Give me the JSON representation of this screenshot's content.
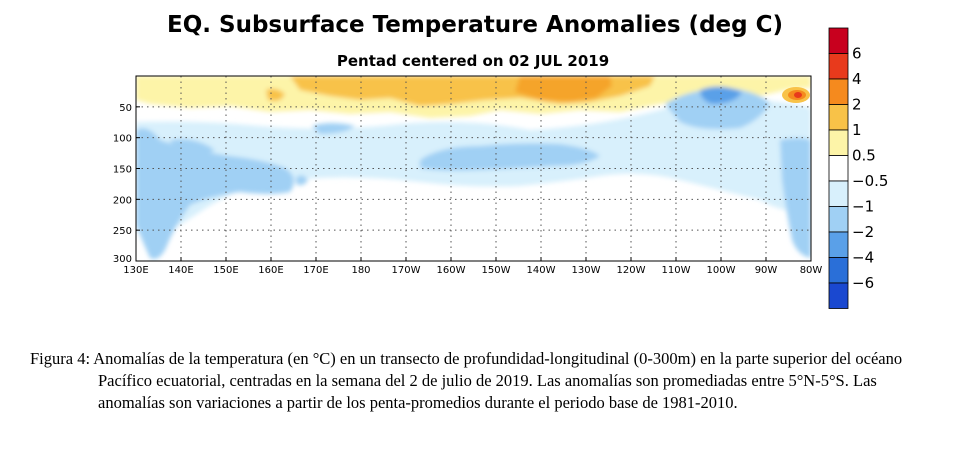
{
  "chart_data": {
    "type": "heatmap",
    "title": "EQ. Subsurface Temperature Anomalies (deg C)",
    "subtitle": "Pentad centered on 02 JUL 2019",
    "xlabel": "",
    "ylabel": "",
    "x_ticks": [
      "130E",
      "140E",
      "150E",
      "160E",
      "170E",
      "180",
      "170W",
      "160W",
      "150W",
      "140W",
      "130W",
      "120W",
      "110W",
      "100W",
      "90W",
      "80W"
    ],
    "y_ticks": [
      "50",
      "100",
      "150",
      "200",
      "250",
      "300"
    ],
    "y_tick_values": [
      50,
      100,
      150,
      200,
      250,
      300
    ],
    "xlim_lon_east": [
      130,
      280
    ],
    "ylim_depth_m": [
      0,
      300
    ],
    "grid": true,
    "colorbar": {
      "position": "right",
      "labels": [
        "6",
        "4",
        "2",
        "1",
        "0.5",
        "−0.5",
        "−1",
        "−2",
        "−4",
        "−6"
      ],
      "colors": [
        "#c8001e",
        "#e83a1c",
        "#f58a1e",
        "#f8c248",
        "#fdf4a8",
        "#ffffff",
        "#d8f0fc",
        "#a0d0f4",
        "#5aa0e8",
        "#2a6fd8",
        "#1a48d0"
      ]
    },
    "anomaly_regions": [
      {
        "category": "warm_1_2",
        "lon_east": [
          163,
          248
        ],
        "depth_m": [
          0,
          38
        ]
      },
      {
        "category": "warm_0.5_1",
        "lon_east": [
          130,
          255
        ],
        "depth_m": [
          10,
          55
        ]
      },
      {
        "category": "warm_1_2",
        "lon_east": [
          190,
          218
        ],
        "depth_m": [
          5,
          40
        ]
      },
      {
        "category": "warm_2_4",
        "lon_east": [
          272,
          280
        ],
        "depth_m": [
          30,
          50
        ]
      },
      {
        "category": "cool_0.5_1",
        "lon_east": [
          130,
          280
        ],
        "depth_m": [
          70,
          190
        ]
      },
      {
        "category": "cool_1_2",
        "lon_east": [
          130,
          166
        ],
        "depth_m": [
          110,
          295
        ]
      },
      {
        "category": "cool_1_2",
        "lon_east": [
          193,
          243
        ],
        "depth_m": [
          120,
          170
        ]
      },
      {
        "category": "cool_1_2",
        "lon_east": [
          253,
          275
        ],
        "depth_m": [
          40,
          100
        ]
      },
      {
        "category": "cool_2_4",
        "lon_east": [
          255,
          265
        ],
        "depth_m": [
          30,
          60
        ]
      },
      {
        "category": "cool_1_2",
        "lon_east": [
          272,
          280
        ],
        "depth_m": [
          110,
          280
        ]
      }
    ]
  },
  "caption": "Figura 4: Anomalías de la temperatura (en °C) en un transecto de profundidad-longitudinal (0-300m) en la parte superior del océano Pacífico ecuatorial, centradas en la semana del 2 de julio de 2019. Las anomalías son promediadas entre 5°N-5°S. Las anomalías son variaciones a partir de los penta-promedios durante el periodo base de 1981-2010."
}
